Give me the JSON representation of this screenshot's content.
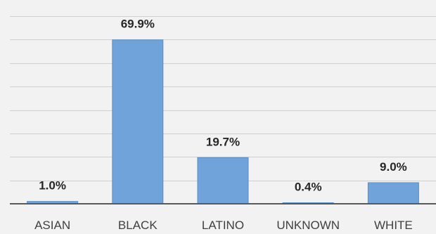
{
  "chart_data": {
    "type": "bar",
    "categories": [
      "ASIAN",
      "BLACK",
      "LATINO",
      "UNKNOWN",
      "WHITE"
    ],
    "values": [
      1.0,
      69.9,
      19.7,
      0.4,
      9.0
    ],
    "data_labels": [
      "1.0%",
      "69.9%",
      "19.7%",
      "0.4%",
      "9.0%"
    ],
    "ylim": [
      0,
      80
    ],
    "grid": true,
    "colors": {
      "bar": "#6fa3da",
      "background": "#f2f2f2",
      "grid": "#d0d0d0",
      "axis": "#595959"
    }
  }
}
